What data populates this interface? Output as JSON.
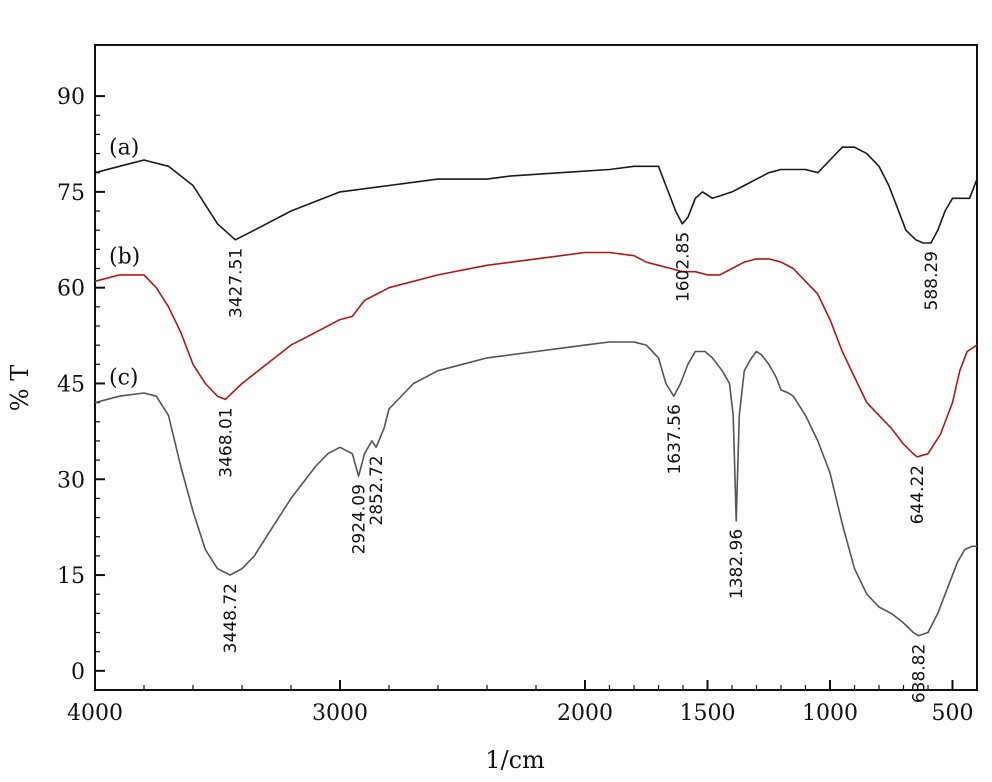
{
  "chart_data": {
    "type": "line",
    "title": "",
    "xlabel": "1/cm",
    "ylabel": "% T",
    "xlim": [
      4000,
      400
    ],
    "ylim": [
      -3,
      98
    ],
    "x_reversed": true,
    "grid": false,
    "legend": "inline labels at left of each trace",
    "x_ticks": [
      4000,
      3000,
      2000,
      1500,
      1000,
      500
    ],
    "x_tick_labels": [
      "4000",
      "3000",
      "2000",
      "1500",
      "1000",
      "500"
    ],
    "y_ticks": [
      0,
      15,
      30,
      45,
      60,
      75,
      90
    ],
    "y_tick_labels": [
      "0",
      "15",
      "30",
      "45",
      "60",
      "75",
      "90"
    ],
    "series": [
      {
        "name": "(a)",
        "color": "#1a1a1a",
        "points": [
          [
            4000,
            78
          ],
          [
            3900,
            79
          ],
          [
            3800,
            80
          ],
          [
            3700,
            79
          ],
          [
            3600,
            76
          ],
          [
            3500,
            70
          ],
          [
            3427.51,
            67.5
          ],
          [
            3350,
            69
          ],
          [
            3200,
            72
          ],
          [
            3000,
            75
          ],
          [
            2800,
            76
          ],
          [
            2600,
            77
          ],
          [
            2400,
            77
          ],
          [
            2300,
            77.5
          ],
          [
            2100,
            78
          ],
          [
            1900,
            78.5
          ],
          [
            1800,
            79
          ],
          [
            1700,
            79
          ],
          [
            1680,
            77
          ],
          [
            1650,
            74
          ],
          [
            1630,
            72
          ],
          [
            1602.85,
            70
          ],
          [
            1580,
            71
          ],
          [
            1550,
            74
          ],
          [
            1520,
            75
          ],
          [
            1480,
            74
          ],
          [
            1440,
            74.5
          ],
          [
            1400,
            75
          ],
          [
            1350,
            76
          ],
          [
            1300,
            77
          ],
          [
            1250,
            78
          ],
          [
            1200,
            78.5
          ],
          [
            1100,
            78.5
          ],
          [
            1050,
            78
          ],
          [
            1000,
            80
          ],
          [
            950,
            82
          ],
          [
            900,
            82
          ],
          [
            850,
            81
          ],
          [
            800,
            79
          ],
          [
            760,
            76
          ],
          [
            720,
            72
          ],
          [
            690,
            69
          ],
          [
            650,
            67.5
          ],
          [
            620,
            67
          ],
          [
            588.29,
            67
          ],
          [
            560,
            69
          ],
          [
            530,
            72
          ],
          [
            500,
            74
          ],
          [
            460,
            74
          ],
          [
            430,
            74
          ],
          [
            410,
            76
          ],
          [
            400,
            77
          ]
        ]
      },
      {
        "name": "(b)",
        "color": "#b01818",
        "points": [
          [
            4000,
            61
          ],
          [
            3900,
            62
          ],
          [
            3800,
            62
          ],
          [
            3750,
            60
          ],
          [
            3700,
            57
          ],
          [
            3650,
            53
          ],
          [
            3600,
            48
          ],
          [
            3550,
            45
          ],
          [
            3500,
            43
          ],
          [
            3468.01,
            42.5
          ],
          [
            3400,
            45
          ],
          [
            3300,
            48
          ],
          [
            3200,
            51
          ],
          [
            3100,
            53
          ],
          [
            3000,
            55
          ],
          [
            2950,
            55.5
          ],
          [
            2900,
            58
          ],
          [
            2800,
            60
          ],
          [
            2600,
            62
          ],
          [
            2400,
            63.5
          ],
          [
            2200,
            64.5
          ],
          [
            2000,
            65.5
          ],
          [
            1900,
            65.5
          ],
          [
            1800,
            65
          ],
          [
            1750,
            64
          ],
          [
            1700,
            63.5
          ],
          [
            1650,
            63
          ],
          [
            1602.85,
            62.5
          ],
          [
            1550,
            62.5
          ],
          [
            1500,
            62
          ],
          [
            1450,
            62
          ],
          [
            1400,
            63
          ],
          [
            1350,
            64
          ],
          [
            1300,
            64.5
          ],
          [
            1250,
            64.5
          ],
          [
            1200,
            64
          ],
          [
            1150,
            63
          ],
          [
            1100,
            61
          ],
          [
            1050,
            59
          ],
          [
            1000,
            55
          ],
          [
            950,
            50
          ],
          [
            900,
            46
          ],
          [
            850,
            42
          ],
          [
            800,
            40
          ],
          [
            750,
            38
          ],
          [
            700,
            35.5
          ],
          [
            660,
            34
          ],
          [
            644.22,
            33.5
          ],
          [
            600,
            34
          ],
          [
            550,
            37
          ],
          [
            500,
            42
          ],
          [
            470,
            47
          ],
          [
            440,
            50
          ],
          [
            400,
            51
          ]
        ]
      },
      {
        "name": "(c)",
        "color": "#555555",
        "points": [
          [
            4000,
            42
          ],
          [
            3900,
            43
          ],
          [
            3800,
            43.5
          ],
          [
            3750,
            43
          ],
          [
            3700,
            40
          ],
          [
            3650,
            32
          ],
          [
            3600,
            25
          ],
          [
            3550,
            19
          ],
          [
            3500,
            16
          ],
          [
            3448.72,
            15
          ],
          [
            3400,
            16
          ],
          [
            3350,
            18
          ],
          [
            3300,
            21
          ],
          [
            3200,
            27
          ],
          [
            3100,
            32
          ],
          [
            3050,
            34
          ],
          [
            3000,
            35
          ],
          [
            2950,
            34
          ],
          [
            2924.09,
            30.5
          ],
          [
            2900,
            34
          ],
          [
            2870,
            36
          ],
          [
            2852.72,
            35
          ],
          [
            2820,
            38
          ],
          [
            2800,
            41
          ],
          [
            2700,
            45
          ],
          [
            2600,
            47
          ],
          [
            2500,
            48
          ],
          [
            2400,
            49
          ],
          [
            2300,
            49.5
          ],
          [
            2200,
            50
          ],
          [
            2100,
            50.5
          ],
          [
            2000,
            51
          ],
          [
            1900,
            51.5
          ],
          [
            1800,
            51.5
          ],
          [
            1750,
            51
          ],
          [
            1700,
            49
          ],
          [
            1670,
            45
          ],
          [
            1637.56,
            43
          ],
          [
            1610,
            45
          ],
          [
            1580,
            48
          ],
          [
            1550,
            50
          ],
          [
            1510,
            50
          ],
          [
            1480,
            49
          ],
          [
            1440,
            47
          ],
          [
            1410,
            45
          ],
          [
            1395,
            40
          ],
          [
            1382.96,
            23.5
          ],
          [
            1370,
            40
          ],
          [
            1350,
            47
          ],
          [
            1320,
            49
          ],
          [
            1300,
            50
          ],
          [
            1280,
            49.5
          ],
          [
            1250,
            48
          ],
          [
            1220,
            46
          ],
          [
            1200,
            44
          ],
          [
            1170,
            43.5
          ],
          [
            1150,
            43
          ],
          [
            1100,
            40
          ],
          [
            1050,
            36
          ],
          [
            1000,
            31
          ],
          [
            950,
            23
          ],
          [
            900,
            16
          ],
          [
            850,
            12
          ],
          [
            800,
            10
          ],
          [
            750,
            9
          ],
          [
            700,
            7.5
          ],
          [
            660,
            6
          ],
          [
            638.82,
            5.5
          ],
          [
            600,
            6
          ],
          [
            560,
            9
          ],
          [
            520,
            13
          ],
          [
            480,
            17
          ],
          [
            450,
            19
          ],
          [
            420,
            19.5
          ],
          [
            400,
            19.5
          ]
        ]
      }
    ],
    "annotations": [
      {
        "text": "3427.51",
        "x": 3427.51,
        "y": 67.5,
        "series": "(a)"
      },
      {
        "text": "1602.85",
        "x": 1602.85,
        "y": 70,
        "series": "(a)"
      },
      {
        "text": "588.29",
        "x": 588.29,
        "y": 67,
        "series": "(a)"
      },
      {
        "text": "3468.01",
        "x": 3468.01,
        "y": 42.5,
        "series": "(b)"
      },
      {
        "text": "644.22",
        "x": 644.22,
        "y": 33.5,
        "series": "(b)"
      },
      {
        "text": "3448.72",
        "x": 3448.72,
        "y": 15,
        "series": "(c)"
      },
      {
        "text": "2924.09",
        "x": 2924.09,
        "y": 30.5,
        "series": "(c)"
      },
      {
        "text": "2852.72",
        "x": 2852.72,
        "y": 35,
        "series": "(c)"
      },
      {
        "text": "1637.56",
        "x": 1637.56,
        "y": 43,
        "series": "(c)"
      },
      {
        "text": "1382.96",
        "x": 1382.96,
        "y": 23.5,
        "series": "(c)"
      },
      {
        "text": "638.82",
        "x": 638.82,
        "y": 5.5,
        "series": "(c)"
      }
    ]
  }
}
